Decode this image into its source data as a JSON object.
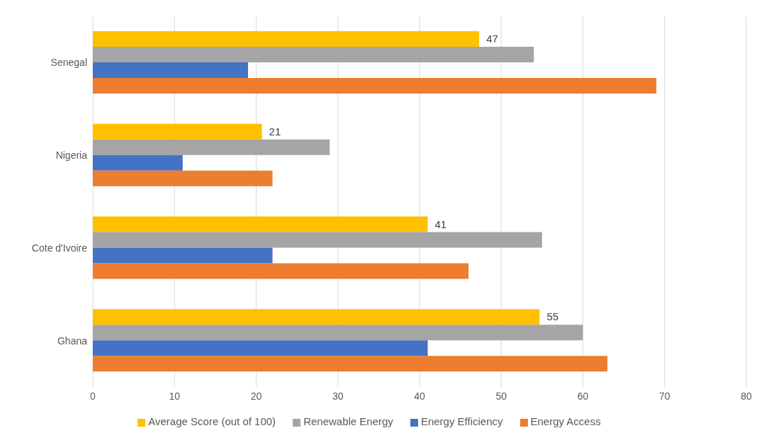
{
  "chart_data": {
    "type": "bar",
    "orientation": "horizontal",
    "categories": [
      "Senegal",
      "Nigeria",
      "Cote d'Ivoire",
      "Ghana"
    ],
    "series": [
      {
        "name": "Average Score (out of 100)",
        "color": "#ffc000",
        "values": [
          47.3,
          20.7,
          41,
          54.7
        ],
        "value_labels": [
          "47",
          "21",
          "41",
          "55"
        ]
      },
      {
        "name": "Renewable Energy",
        "color": "#a5a5a5",
        "values": [
          54,
          29,
          55,
          60
        ]
      },
      {
        "name": "Energy Efficiency",
        "color": "#4472c4",
        "values": [
          19,
          11,
          22,
          41
        ]
      },
      {
        "name": "Energy Access",
        "color": "#ed7d31",
        "values": [
          69,
          22,
          46,
          63
        ]
      }
    ],
    "xlim": [
      0,
      80
    ],
    "xticks": [
      0,
      10,
      20,
      30,
      40,
      50,
      60,
      70,
      80
    ],
    "grid": "x",
    "legend": "bottom"
  }
}
